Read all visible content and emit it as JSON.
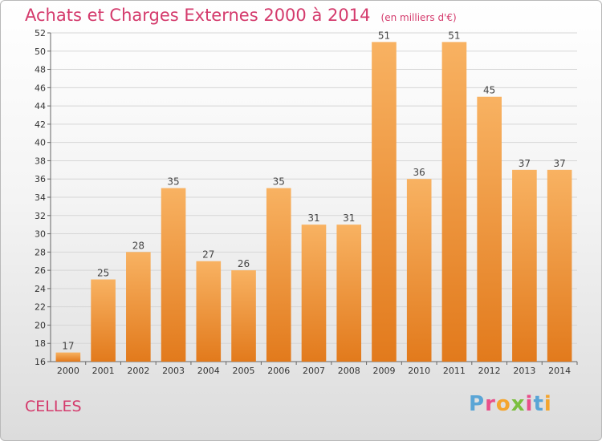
{
  "chart_data": {
    "type": "bar",
    "title": "Achats et Charges Externes 2000 à 2014",
    "subtitle": "(en milliers d'€)",
    "categories": [
      "2000",
      "2001",
      "2002",
      "2003",
      "2004",
      "2005",
      "2006",
      "2007",
      "2008",
      "2009",
      "2010",
      "2011",
      "2012",
      "2013",
      "2014"
    ],
    "values": [
      17,
      25,
      28,
      35,
      27,
      26,
      35,
      31,
      31,
      51,
      36,
      51,
      45,
      37,
      37
    ],
    "data_labels": [
      "17",
      "25",
      "28",
      "35",
      "27",
      "26",
      "35",
      "31",
      "31",
      "51",
      "36",
      "51",
      "45",
      "37",
      "37"
    ],
    "ylim": [
      16,
      52
    ],
    "yticks": [
      16,
      18,
      20,
      22,
      24,
      26,
      28,
      30,
      32,
      34,
      36,
      38,
      40,
      42,
      44,
      46,
      48,
      50,
      52
    ],
    "grid": true,
    "bar_color": "#f08a2c"
  },
  "commune": "CELLES",
  "logo": "Proxiti",
  "colors": {
    "title": "#d43a6c",
    "bar_light": "#f8b262",
    "bar_dark": "#e27a1c",
    "grid": "#d6d6d6",
    "axis": "#666666"
  },
  "logo_colors": [
    "#5aa5d6",
    "#e94f8a",
    "#f4a52e",
    "#7bbf3e",
    "#e94f8a",
    "#5aa5d6",
    "#f4a52e"
  ]
}
